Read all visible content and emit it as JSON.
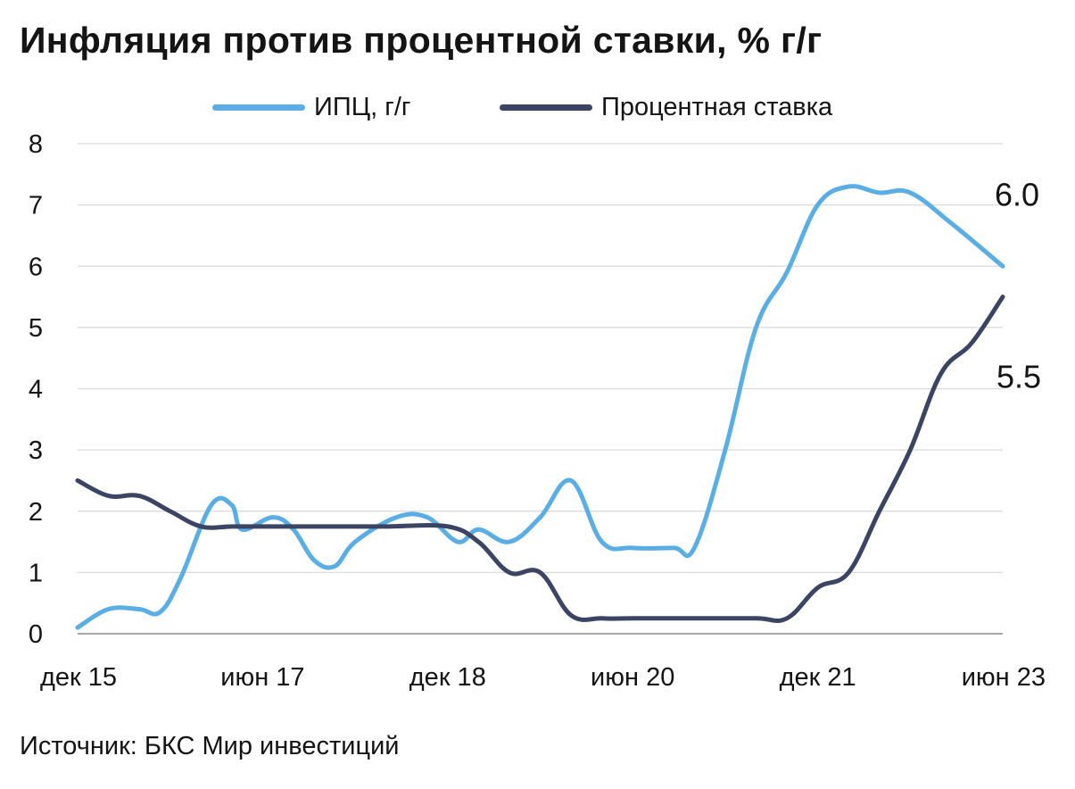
{
  "title": "Инфляция против процентной ставки, % г/г",
  "source": "Источник: БКС Мир инвестиций",
  "legend": [
    {
      "label": "ИПЦ, г/г",
      "color": "#5aaee4"
    },
    {
      "label": "Процентная ставка",
      "color": "#3b4563"
    }
  ],
  "chart_data": {
    "type": "line",
    "xlabel": "",
    "ylabel": "",
    "ylim": [
      0,
      8
    ],
    "yticks": [
      "0",
      "1",
      "2",
      "3",
      "4",
      "5",
      "6",
      "7",
      "8"
    ],
    "x_range": [
      "2015-12",
      "2023-06"
    ],
    "xticks": [
      {
        "date": "2015-12",
        "label": "дек 15"
      },
      {
        "date": "2017-06",
        "label": "июн 17"
      },
      {
        "date": "2018-12",
        "label": "дек 18"
      },
      {
        "date": "2020-06",
        "label": "июн 20"
      },
      {
        "date": "2021-12",
        "label": "дек 21"
      },
      {
        "date": "2023-06",
        "label": "июн 23"
      }
    ],
    "grid": true,
    "legend_position": "top",
    "series": [
      {
        "name": "ИПЦ, г/г",
        "color": "#5aaee4",
        "end_label": "6.0",
        "points": [
          [
            "2015-12",
            0.1
          ],
          [
            "2016-03",
            0.4
          ],
          [
            "2016-06",
            0.4
          ],
          [
            "2016-08",
            0.35
          ],
          [
            "2016-10",
            0.9
          ],
          [
            "2017-01",
            2.1
          ],
          [
            "2017-03",
            2.1
          ],
          [
            "2017-04",
            1.7
          ],
          [
            "2017-07",
            1.9
          ],
          [
            "2017-09",
            1.7
          ],
          [
            "2017-11",
            1.2
          ],
          [
            "2018-01",
            1.1
          ],
          [
            "2018-03",
            1.5
          ],
          [
            "2018-07",
            1.9
          ],
          [
            "2018-10",
            1.9
          ],
          [
            "2019-01",
            1.5
          ],
          [
            "2019-03",
            1.7
          ],
          [
            "2019-06",
            1.5
          ],
          [
            "2019-09",
            1.9
          ],
          [
            "2019-12",
            2.5
          ],
          [
            "2020-03",
            1.5
          ],
          [
            "2020-06",
            1.4
          ],
          [
            "2020-10",
            1.4
          ],
          [
            "2020-12",
            1.4
          ],
          [
            "2021-03",
            3.0
          ],
          [
            "2021-06",
            5.0
          ],
          [
            "2021-09",
            5.9
          ],
          [
            "2021-12",
            7.0
          ],
          [
            "2022-03",
            7.3
          ],
          [
            "2022-06",
            7.2
          ],
          [
            "2022-09",
            7.2
          ],
          [
            "2023-01",
            6.7
          ],
          [
            "2023-06",
            6.0
          ]
        ]
      },
      {
        "name": "Процентная ставка",
        "color": "#3b4563",
        "end_label": "5.5",
        "points": [
          [
            "2015-12",
            2.5
          ],
          [
            "2016-03",
            2.25
          ],
          [
            "2016-06",
            2.25
          ],
          [
            "2016-09",
            2.0
          ],
          [
            "2016-12",
            1.75
          ],
          [
            "2017-03",
            1.75
          ],
          [
            "2017-06",
            1.75
          ],
          [
            "2017-12",
            1.75
          ],
          [
            "2018-06",
            1.75
          ],
          [
            "2018-12",
            1.75
          ],
          [
            "2019-03",
            1.5
          ],
          [
            "2019-06",
            1.0
          ],
          [
            "2019-09",
            1.0
          ],
          [
            "2019-12",
            0.3
          ],
          [
            "2020-03",
            0.25
          ],
          [
            "2020-06",
            0.25
          ],
          [
            "2020-12",
            0.25
          ],
          [
            "2021-06",
            0.25
          ],
          [
            "2021-09",
            0.25
          ],
          [
            "2021-12",
            0.75
          ],
          [
            "2022-03",
            1.0
          ],
          [
            "2022-06",
            2.0
          ],
          [
            "2022-09",
            3.0
          ],
          [
            "2022-12",
            4.25
          ],
          [
            "2023-03",
            4.75
          ],
          [
            "2023-06",
            5.5
          ]
        ]
      }
    ]
  }
}
